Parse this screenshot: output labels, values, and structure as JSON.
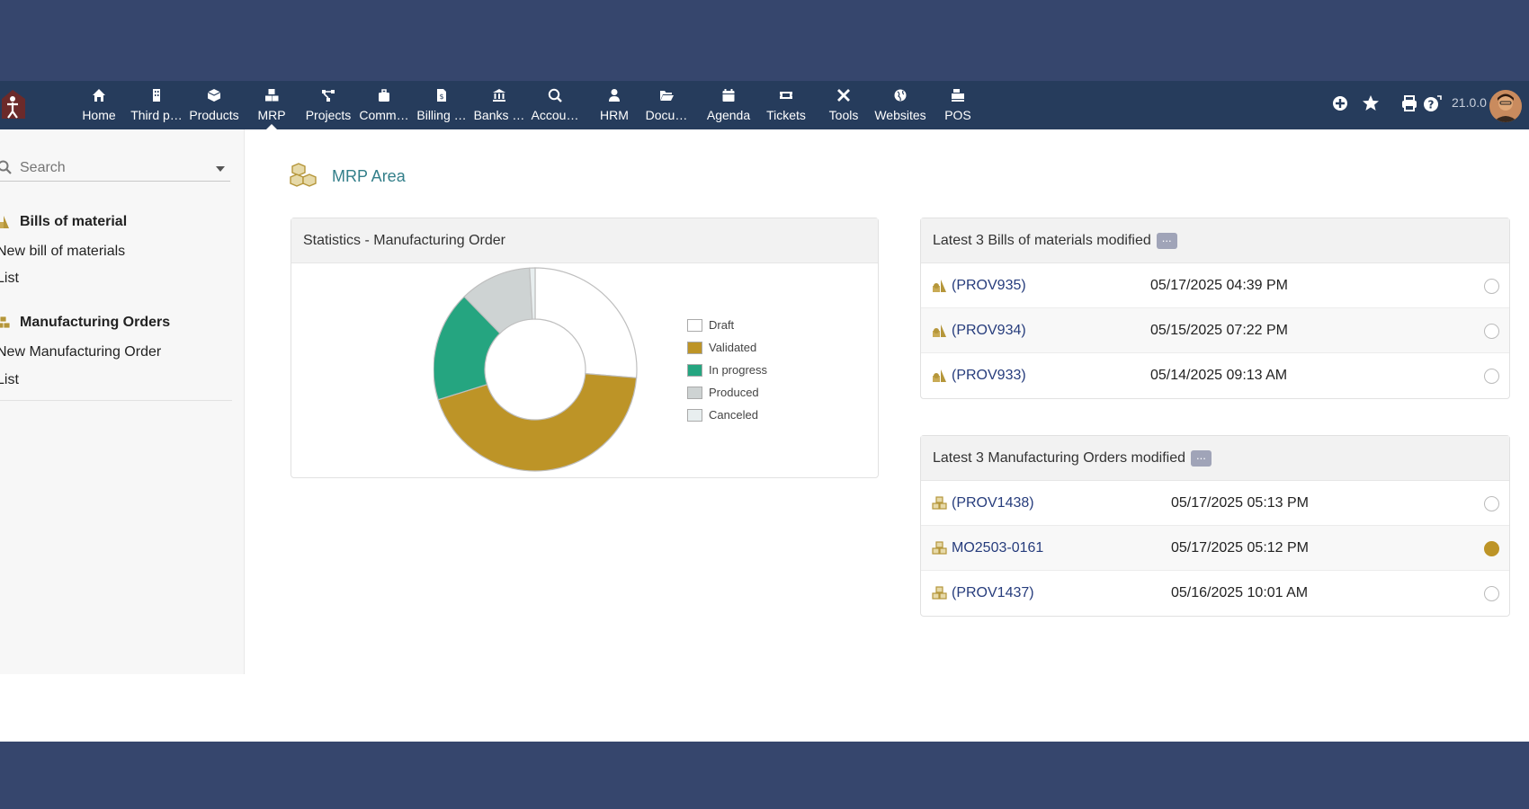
{
  "nav": {
    "items": [
      {
        "label": "Home",
        "icon": "home-icon"
      },
      {
        "label": "Third p…",
        "icon": "building-icon"
      },
      {
        "label": "Products",
        "icon": "cube-icon"
      },
      {
        "label": "MRP",
        "icon": "cubes-icon"
      },
      {
        "label": "Projects",
        "icon": "project-diagram-icon"
      },
      {
        "label": "Comm…",
        "icon": "suitcase-icon"
      },
      {
        "label": "Billing …",
        "icon": "invoice-icon"
      },
      {
        "label": "Banks …",
        "icon": "bank-icon"
      },
      {
        "label": "Accou…",
        "icon": "search-dollar-icon"
      },
      {
        "label": "HRM",
        "icon": "user-tie-icon"
      },
      {
        "label": "Docu…",
        "icon": "folder-open-icon"
      },
      {
        "label": "Agenda",
        "icon": "calendar-icon"
      },
      {
        "label": "Tickets",
        "icon": "ticket-icon"
      },
      {
        "label": "Tools",
        "icon": "tools-icon"
      },
      {
        "label": "Websites",
        "icon": "globe-icon"
      },
      {
        "label": "POS",
        "icon": "cash-register-icon"
      }
    ],
    "active": "MRP",
    "version": "21.0.0"
  },
  "sidebar": {
    "search_placeholder": "Search",
    "sections": [
      {
        "title": "Bills of material",
        "links": [
          "New bill of materials",
          "List"
        ]
      },
      {
        "title": "Manufacturing Orders",
        "links": [
          "New Manufacturing Order",
          "List"
        ]
      }
    ]
  },
  "main": {
    "title": "MRP Area"
  },
  "stats": {
    "title": "Statistics - Manufacturing Order"
  },
  "chart_data": {
    "type": "pie",
    "donut": true,
    "categories": [
      "Draft",
      "Validated",
      "In progress",
      "Produced",
      "Canceled"
    ],
    "values": [
      3,
      5,
      2,
      1.3,
      0.1
    ],
    "colors": [
      "#ffffff",
      "#bd9427",
      "#25a580",
      "#ced3d3",
      "#e8eeef"
    ],
    "legend_position": "right"
  },
  "boms": {
    "title": "Latest 3 Bills of materials modified",
    "more": "...",
    "rows": [
      {
        "ref": "(PROV935)",
        "date": "05/17/2025 04:39 PM",
        "status": "draft"
      },
      {
        "ref": "(PROV934)",
        "date": "05/15/2025 07:22 PM",
        "status": "draft"
      },
      {
        "ref": "(PROV933)",
        "date": "05/14/2025 09:13 AM",
        "status": "draft"
      }
    ]
  },
  "mos": {
    "title": "Latest 3 Manufacturing Orders modified",
    "more": "...",
    "rows": [
      {
        "ref": "(PROV1438)",
        "date": "05/17/2025 05:13 PM",
        "status": "draft"
      },
      {
        "ref": "MO2503-0161",
        "date": "05/17/2025 05:12 PM",
        "status": "validated"
      },
      {
        "ref": "(PROV1437)",
        "date": "05/16/2025 10:01 AM",
        "status": "draft"
      }
    ]
  }
}
